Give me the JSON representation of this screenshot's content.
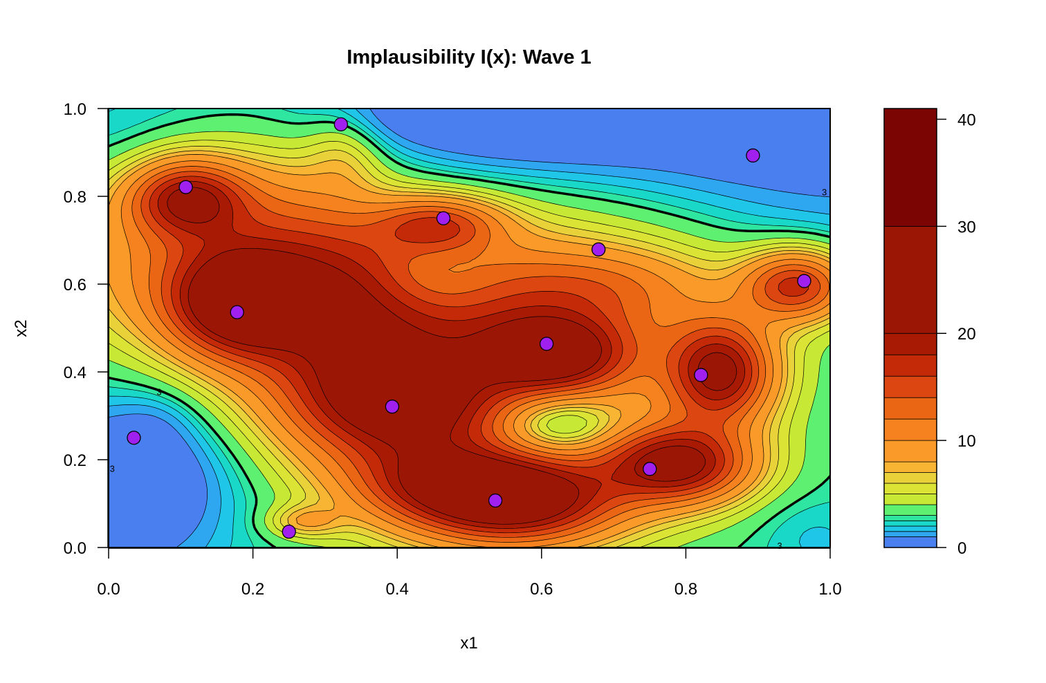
{
  "chart_data": {
    "type": "contour",
    "title": "Implausibility I(x): Wave 1",
    "xlabel": "x1",
    "ylabel": "x2",
    "xlim": [
      0,
      1
    ],
    "ylim": [
      0,
      1
    ],
    "x_ticks": [
      "0.0",
      "0.2",
      "0.4",
      "0.6",
      "0.8",
      "1.0"
    ],
    "y_ticks": [
      "0.0",
      "0.2",
      "0.4",
      "0.6",
      "0.8",
      "1.0"
    ],
    "colorbar": {
      "range": [
        0,
        41
      ],
      "ticks": [
        "0",
        "10",
        "20",
        "30",
        "40"
      ],
      "levels": [
        0,
        1,
        1.5,
        2,
        2.5,
        3,
        4,
        5,
        6,
        7,
        8,
        10,
        12,
        14,
        16,
        18,
        20,
        30,
        41
      ],
      "colors": [
        "#4a7ff0",
        "#2fa7f0",
        "#20c6e8",
        "#1ad8c8",
        "#2ee6a0",
        "#5ef070",
        "#c8e836",
        "#dbe434",
        "#e9d13a",
        "#f8b433",
        "#fa9a28",
        "#f5821e",
        "#ea6514",
        "#dc4610",
        "#c52a08",
        "#a81a04",
        "#9b1604",
        "#7a0503"
      ]
    },
    "threshold_contour": 3,
    "contour_labels": [
      "3",
      "3",
      "3",
      "3"
    ],
    "design_points": {
      "x": [
        0.035,
        0.107,
        0.178,
        0.25,
        0.322,
        0.393,
        0.464,
        0.536,
        0.607,
        0.679,
        0.75,
        0.821,
        0.893,
        0.964
      ],
      "y": [
        0.25,
        0.821,
        0.536,
        0.036,
        0.964,
        0.321,
        0.75,
        0.107,
        0.464,
        0.679,
        0.179,
        0.393,
        0.893,
        0.607
      ]
    },
    "point_color": "#a020f0"
  }
}
